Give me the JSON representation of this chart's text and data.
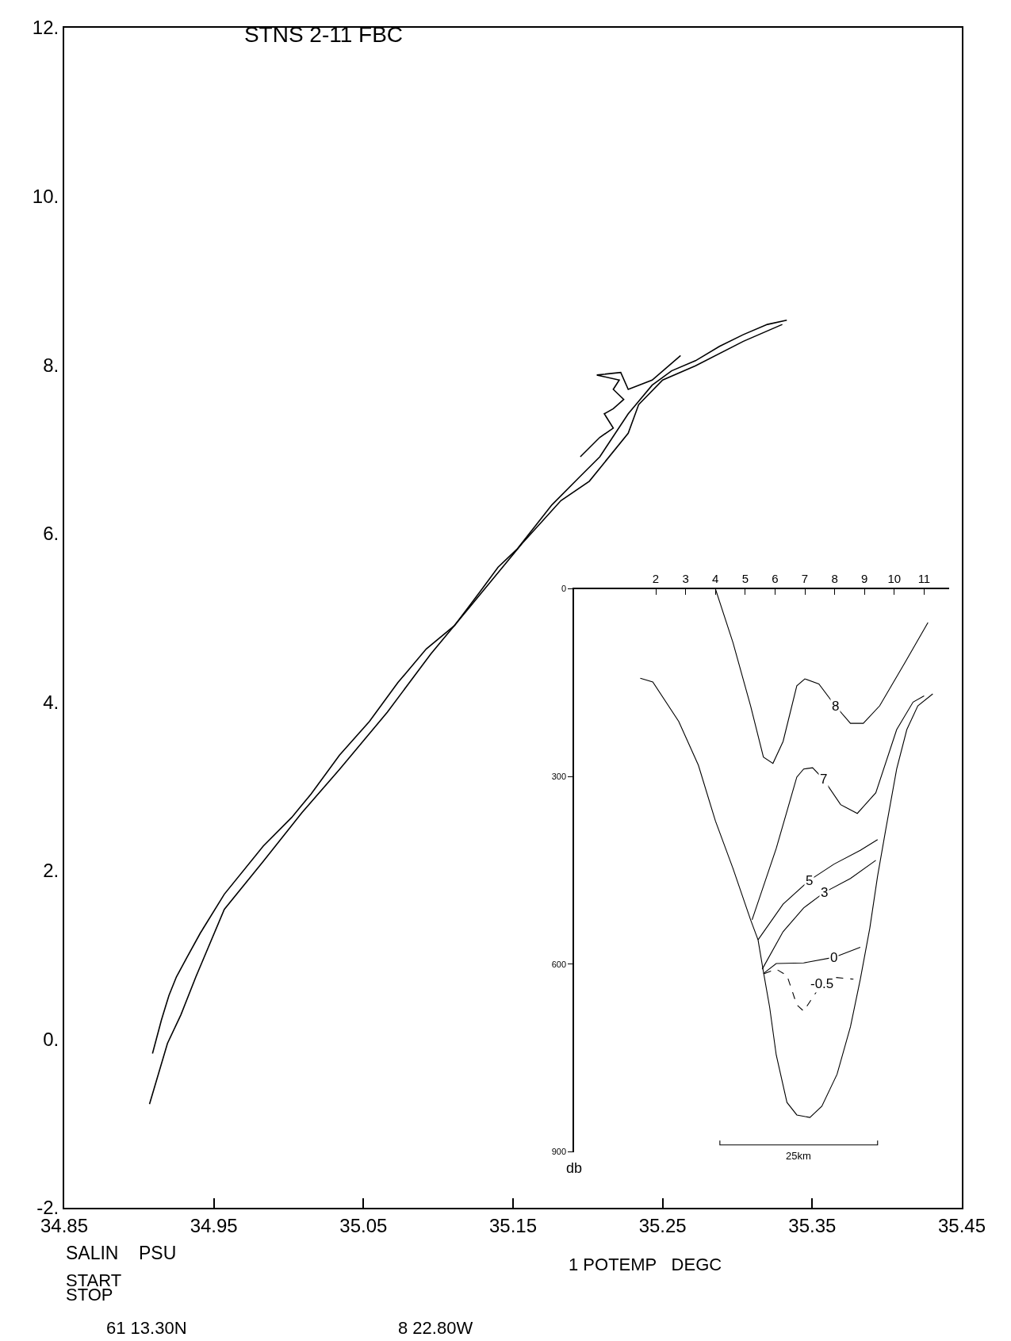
{
  "chart_data": [
    {
      "type": "line",
      "title": "STNS 2-11 FBC",
      "xlabel": "SALIN    PSU",
      "annotations": [
        "1 POTEMP   DEGC",
        "START",
        "STOP",
        "61 13.30N",
        "8 22.80W"
      ],
      "xlim": [
        34.85,
        35.45
      ],
      "ylim": [
        -2,
        12
      ],
      "xticks": [
        34.85,
        34.95,
        35.05,
        35.15,
        35.25,
        35.35,
        35.45
      ],
      "yticks": [
        {
          "value": -2,
          "label": "-2."
        },
        {
          "value": 0,
          "label": "0."
        },
        {
          "value": 2,
          "label": "2."
        },
        {
          "value": 4,
          "label": "4."
        },
        {
          "value": 6,
          "label": "6."
        },
        {
          "value": 8,
          "label": "8."
        },
        {
          "value": 10,
          "label": "10."
        },
        {
          "value": 12,
          "label": "12."
        }
      ],
      "legend": false,
      "line_style": "solid",
      "series": [
        {
          "color": "#000000",
          "x": [
            34.909,
            34.915,
            34.92,
            34.925,
            34.932,
            34.941,
            34.957,
            34.983,
            35.002,
            35.015,
            35.034,
            35.054,
            35.073,
            35.092,
            35.111,
            35.128,
            35.14,
            35.153,
            35.176,
            35.195,
            35.208,
            35.227,
            35.243,
            35.256,
            35.272,
            35.288,
            35.304,
            35.32,
            35.333
          ],
          "values": [
            -0.17,
            0.23,
            0.52,
            0.74,
            0.97,
            1.26,
            1.72,
            2.29,
            2.63,
            2.91,
            3.37,
            3.77,
            4.23,
            4.63,
            4.91,
            5.31,
            5.6,
            5.82,
            6.34,
            6.68,
            6.91,
            7.42,
            7.76,
            7.93,
            8.05,
            8.22,
            8.36,
            8.48,
            8.53
          ]
        },
        {
          "color": "#000000",
          "x": [
            35.33,
            35.304,
            35.272,
            35.25,
            35.234,
            35.227,
            35.201,
            35.182,
            35.156,
            35.124,
            35.095,
            35.066,
            35.034,
            35.009,
            34.983,
            34.957,
            34.938,
            34.928,
            34.919,
            34.907
          ],
          "values": [
            8.48,
            8.28,
            7.99,
            7.82,
            7.53,
            7.19,
            6.62,
            6.39,
            5.88,
            5.19,
            4.57,
            3.88,
            3.2,
            2.69,
            2.11,
            1.54,
            0.74,
            0.29,
            -0.05,
            -0.77
          ]
        },
        {
          "color": "#000000",
          "x": [
            35.195,
            35.208,
            35.217,
            35.211,
            35.217,
            35.224,
            35.217,
            35.221,
            35.206,
            35.222,
            35.227,
            35.243,
            35.262
          ],
          "values": [
            6.91,
            7.14,
            7.25,
            7.42,
            7.48,
            7.59,
            7.71,
            7.82,
            7.88,
            7.91,
            7.71,
            7.82,
            8.11
          ]
        }
      ]
    },
    {
      "type": "line",
      "annotations": [
        "db",
        {
          "text": "8",
          "x": 8.02,
          "y": 187
        },
        {
          "text": "7",
          "x": 7.62,
          "y": 304
        },
        {
          "text": "5",
          "x": 7.15,
          "y": 466
        },
        {
          "text": "3",
          "x": 7.66,
          "y": 485
        },
        {
          "text": "0",
          "x": 7.98,
          "y": 589
        },
        {
          "text": "-0.5",
          "x": 7.57,
          "y": 631
        }
      ],
      "xlim": [
        -0.74,
        11.84
      ],
      "ylim": [
        900,
        0
      ],
      "xticks": [
        2,
        3,
        4,
        5,
        6,
        7,
        8,
        9,
        10,
        11
      ],
      "yticks": [
        0,
        300,
        600,
        900
      ],
      "legend": false,
      "series": [
        {
          "color": "#000000",
          "x": [
            1.48,
            1.9,
            2.77,
            3.43,
            4.0,
            4.59,
            5.18,
            5.43,
            5.61,
            5.82,
            6.04,
            6.4,
            6.73,
            7.17,
            7.57,
            8.08,
            8.53,
            8.86,
            9.18,
            9.44,
            9.72,
            10.08,
            10.42,
            10.79,
            11.29
          ],
          "values": [
            143,
            149,
            212,
            282,
            371,
            447,
            529,
            561,
            612,
            669,
            745,
            821,
            841,
            845,
            827,
            776,
            700,
            624,
            542,
            459,
            383,
            288,
            225,
            187,
            168
          ]
        },
        {
          "color": "#000000",
          "x": [
            4.0,
            4.59,
            5.18,
            5.61,
            5.93,
            6.27,
            6.73,
            7.0,
            7.47,
            8.02,
            8.53,
            8.96,
            9.51,
            10.37,
            11.13
          ],
          "values": [
            0,
            86,
            187,
            269,
            279,
            244,
            155,
            144,
            152,
            187,
            215,
            215,
            187,
            117,
            54
          ]
        },
        {
          "color": "#000000",
          "x": [
            5.23,
            6.04,
            6.73,
            6.96,
            7.26,
            7.62,
            8.2,
            8.76,
            9.38,
            10.08,
            10.63,
            11.0
          ],
          "values": [
            529,
            415,
            301,
            288,
            286,
            304,
            345,
            359,
            326,
            225,
            181,
            171
          ]
        },
        {
          "color": "#000000",
          "x": [
            5.43,
            6.27,
            7.15,
            7.98,
            8.86,
            9.44
          ],
          "values": [
            561,
            504,
            466,
            440,
            418,
            401
          ]
        },
        {
          "color": "#000000",
          "x": [
            5.57,
            6.27,
            6.96,
            7.66,
            8.53,
            9.38
          ],
          "values": [
            608,
            548,
            510,
            485,
            463,
            434
          ]
        },
        {
          "color": "#000000",
          "x": [
            5.61,
            6.04,
            6.96,
            7.98,
            8.86
          ],
          "values": [
            615,
            599,
            598,
            589,
            573
          ]
        },
        {
          "color": "#000000",
          "line_style": "dashed",
          "x": [
            5.64,
            6.04,
            6.4,
            6.73,
            6.96,
            7.57,
            7.98,
            8.63
          ],
          "values": [
            615,
            608,
            618,
            665,
            675,
            631,
            621,
            624
          ]
        },
        {
          "color": "#000000",
          "name": "25km",
          "x": [
            4.15,
            4.15,
            9.44,
            9.44
          ],
          "values": [
            882,
            889,
            889,
            882
          ]
        }
      ]
    }
  ]
}
